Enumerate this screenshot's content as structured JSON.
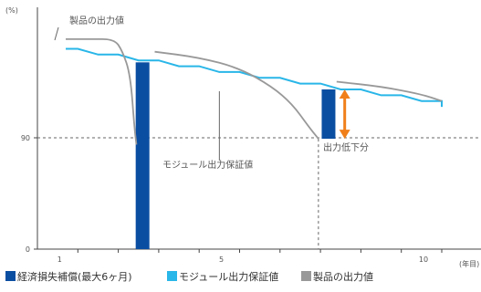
{
  "chart_data": {
    "type": "line",
    "y_unit": "(%)",
    "x_unit": "(年目)",
    "y_ticks": [
      {
        "label": "0",
        "value": 0
      },
      {
        "label": "90",
        "value": 90
      }
    ],
    "x_ticks": [
      {
        "label": "1",
        "value": 1
      },
      {
        "label": "5",
        "value": 5
      },
      {
        "label": "10",
        "value": 10
      }
    ],
    "x_max": 11,
    "reference_line_y": 90,
    "annotations": {
      "product": "製品の出力値",
      "guarantee": "モジュール出力保証値",
      "drop": "出力低下分"
    },
    "colors": {
      "guarantee": "#29b6e8",
      "compensation": "#0a4ea2",
      "product": "#999999",
      "drop_arrow": "#f07f1a",
      "reference": "#666666"
    },
    "series": [
      {
        "name": "モジュール出力保証値",
        "kind": "step",
        "points": [
          [
            0.7,
            99.2
          ],
          [
            1.0,
            99.2
          ],
          [
            1.5,
            98.6
          ],
          [
            2.0,
            98.6
          ],
          [
            2.5,
            98.0
          ],
          [
            3.0,
            98.0
          ],
          [
            3.5,
            97.4
          ],
          [
            4.0,
            97.4
          ],
          [
            4.5,
            96.8
          ],
          [
            5.0,
            96.8
          ],
          [
            5.5,
            96.2
          ],
          [
            6.0,
            96.2
          ],
          [
            6.5,
            95.6
          ],
          [
            7.0,
            95.6
          ],
          [
            7.5,
            95.0
          ],
          [
            8.0,
            95.0
          ],
          [
            8.5,
            94.4
          ],
          [
            9.0,
            94.4
          ],
          [
            9.5,
            93.8
          ],
          [
            10.0,
            93.8
          ],
          [
            10.0,
            93.2
          ]
        ]
      },
      {
        "name": "製品の出力値",
        "kind": "curve",
        "segments": [
          [
            [
              0.7,
              100.2
            ],
            [
              1.3,
              100.2
            ],
            [
              1.9,
              100.2
            ],
            [
              2.1,
              99.0
            ],
            [
              2.3,
              96.5
            ],
            [
              2.4,
              91.0
            ],
            [
              2.45,
              84.5
            ]
          ],
          [
            [
              2.9,
              98.9
            ],
            [
              4.0,
              98.3
            ],
            [
              5.0,
              97.2
            ],
            [
              5.8,
              95.3
            ],
            [
              6.3,
              93.5
            ],
            [
              6.7,
              91.2
            ],
            [
              6.95,
              89.2
            ]
          ],
          [
            [
              7.4,
              95.8
            ],
            [
              8.5,
              95.3
            ],
            [
              9.5,
              94.5
            ],
            [
              10.0,
              93.8
            ]
          ]
        ]
      }
    ],
    "compensation_bars": [
      {
        "x": 2.6,
        "from": 0,
        "to": 97.8
      },
      {
        "x": 7.2,
        "from": 89.2,
        "to": 95.0
      }
    ],
    "drop_arrow": {
      "x": 7.6,
      "top": 95.0,
      "bottom": 89.2
    },
    "legend": [
      {
        "label": "経済損失補償(最大6ヶ月)",
        "color_key": "compensation"
      },
      {
        "label": "モジュール出力保証値",
        "color_key": "guarantee"
      },
      {
        "label": "製品の出力値",
        "color_key": "product"
      }
    ]
  }
}
